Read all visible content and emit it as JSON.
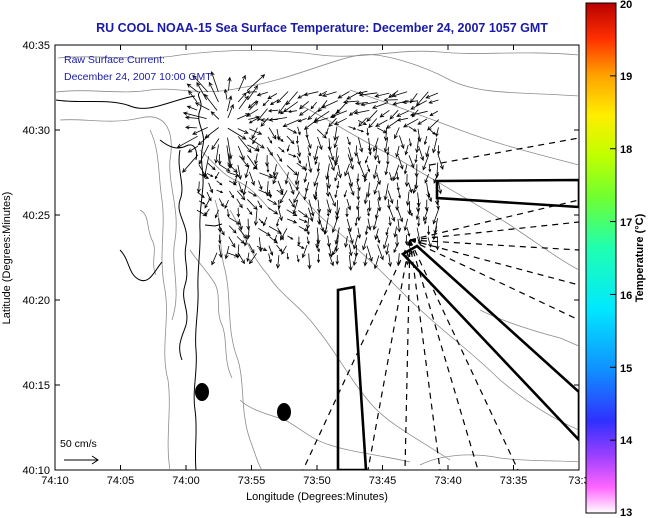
{
  "title": "RU COOL  NOAA-15  Sea Surface Temperature:  December 24, 2007 1057 GMT",
  "annotation": {
    "line1": "Raw Surface Current:",
    "line2": "December 24, 2007 10:00 GMT"
  },
  "map": {
    "type": "map",
    "xlabel": "Longitude (Degrees:Minutes)",
    "ylabel": "Latitude (Degrees:Minutes)",
    "x_ticks": [
      "74:10",
      "74:05",
      "74:00",
      "73:55",
      "73:50",
      "73:45",
      "73:40",
      "73:35",
      "73:3"
    ],
    "y_ticks": [
      "40:35",
      "40:30",
      "40:25",
      "40:20",
      "40:15",
      "40:10"
    ],
    "lon_range_west_minutes": [
      10,
      -30
    ],
    "lat_range": [
      "40:10",
      "40:35"
    ]
  },
  "scale_bar": {
    "label": "50 cm/s"
  },
  "colorbar": {
    "label": "Temperature (°C)",
    "ticks": [
      "20",
      "19",
      "18",
      "17",
      "16",
      "15",
      "14",
      "13"
    ],
    "range": [
      13,
      20
    ]
  },
  "colors": {
    "title": "#1a1aa8",
    "contour": "#8c8c8c",
    "vector": "#000000"
  }
}
